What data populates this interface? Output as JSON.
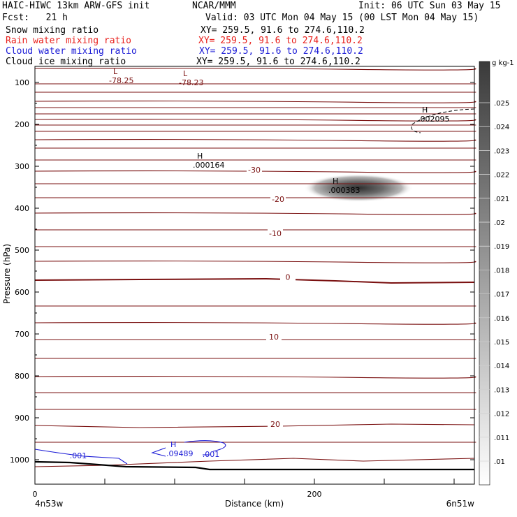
{
  "header": {
    "model_line": "HAIC-HIWC 13km ARW-GFS init",
    "center": "NCAR/MMM",
    "init": "Init: 06 UTC Sun 03 May 15",
    "fcst": "Fcst:   21 h",
    "valid": "Valid: 03 UTC Mon 04 May 15 (00 LST Mon 04 May 15)",
    "fields": [
      {
        "label": "Snow mixing ratio",
        "xy": "XY= 259.5, 91.6 to 274.6,110.2",
        "color": "#000000"
      },
      {
        "label": "Rain water mixing ratio",
        "xy": "XY= 259.5, 91.6 to 274.6,110.2",
        "color": "#e8201c"
      },
      {
        "label": "Cloud water mixing ratio",
        "xy": "XY= 259.5, 91.6 to 274.6,110.2",
        "color": "#1a1ad6"
      },
      {
        "label": "Cloud ice mixing ratio",
        "xy": "XY= 259.5, 91.6 to 274.6,110.2",
        "color": "#000000"
      }
    ]
  },
  "chart_data": {
    "type": "heatmap",
    "ylabel": "Pressure (hPa)",
    "xlabel": "Distance (km)",
    "x_start_label": "4n53w",
    "x_end_label": "6n51w",
    "x_ticks": [
      0,
      200
    ],
    "y_ticks": [
      100,
      200,
      300,
      400,
      500,
      600,
      700,
      800,
      900,
      1000
    ],
    "colorbar": {
      "unit": "g kg-1",
      "ticks": [
        ".01",
        ".011",
        ".012",
        ".013",
        ".014",
        ".015",
        ".016",
        ".017",
        ".018",
        ".019",
        ".02",
        ".021",
        ".022",
        ".023",
        ".024",
        ".025"
      ]
    },
    "temperature_labels": [
      {
        "text": "-30",
        "x": 157,
        "p": 308
      },
      {
        "text": "-20",
        "x": 174,
        "p": 378
      },
      {
        "text": "-10",
        "x": 172,
        "p": 460
      },
      {
        "text": "0",
        "x": 181,
        "p": 564
      },
      {
        "text": "10",
        "x": 171,
        "p": 707
      },
      {
        "text": "20",
        "x": 172,
        "p": 915
      }
    ],
    "extrema": [
      {
        "type": "L",
        "value": "-78.25",
        "x": 55,
        "p": 83
      },
      {
        "type": "L",
        "value": "-78.23",
        "x": 105,
        "p": 88
      },
      {
        "type": "H",
        "value": ".002095",
        "x": 276,
        "p": 175
      },
      {
        "type": "H",
        "value": ".000164",
        "x": 115,
        "p": 285
      },
      {
        "type": "H",
        "value": ".000383",
        "x": 212,
        "p": 345
      },
      {
        "type": "H",
        "value": ".09489",
        "x": 96,
        "p": 973
      }
    ],
    "cloud_water_labels": [
      {
        "text": ".001",
        "x": 31,
        "p": 990
      },
      {
        "text": ".001",
        "x": 126,
        "p": 987
      }
    ],
    "shaded_max_value": ".000383",
    "colors": {
      "isotherm": "#7a1010",
      "cloud_water": "#1a1ad6",
      "terrain": "#000000",
      "shade_dark": "#3a3a3a"
    }
  }
}
